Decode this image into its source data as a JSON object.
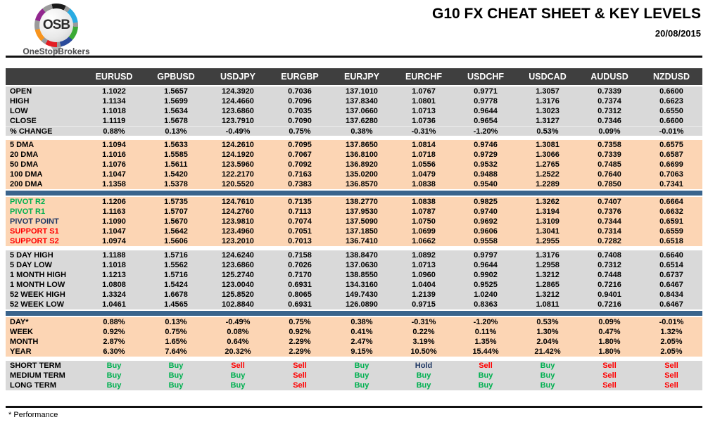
{
  "brand": {
    "logo_text": "OSB",
    "logo_name": "OneStopBrokers"
  },
  "header": {
    "title": "G10 FX CHEAT SHEET & KEY LEVELS",
    "date": "20/08/2015"
  },
  "footnote": "* Performance",
  "colors": {
    "header_bar": "#3f3f3f",
    "section_gray": "#d9d9d9",
    "section_peach": "#fcd5b4",
    "divider_blue": "#3a648c",
    "buy_green": "#00b050",
    "sell_red": "#ff0000",
    "hold_navy": "#1f3864"
  },
  "table": {
    "columns": [
      "EURUSD",
      "GPBUSD",
      "USDJPY",
      "EURGBP",
      "EURJPY",
      "EURCHF",
      "USDCHF",
      "USDCAD",
      "AUDUSD",
      "NZDUSD"
    ],
    "sections": [
      {
        "kind": "rows",
        "bg": "gray",
        "rows": [
          {
            "label": "OPEN",
            "values": [
              "1.1022",
              "1.5657",
              "124.3920",
              "0.7036",
              "137.1010",
              "1.0767",
              "0.9771",
              "1.3057",
              "0.7339",
              "0.6600"
            ]
          },
          {
            "label": "HIGH",
            "values": [
              "1.1134",
              "1.5699",
              "124.4660",
              "0.7096",
              "137.8340",
              "1.0801",
              "0.9778",
              "1.3176",
              "0.7374",
              "0.6623"
            ]
          },
          {
            "label": "LOW",
            "values": [
              "1.1018",
              "1.5634",
              "123.6860",
              "0.7035",
              "137.0660",
              "1.0713",
              "0.9644",
              "1.3023",
              "0.7312",
              "0.6550"
            ]
          },
          {
            "label": "CLOSE",
            "values": [
              "1.1119",
              "1.5678",
              "123.7910",
              "0.7090",
              "137.6280",
              "1.0736",
              "0.9654",
              "1.3127",
              "0.7346",
              "0.6600"
            ]
          },
          {
            "label": "% CHANGE",
            "sep": true,
            "values": [
              "0.88%",
              "0.13%",
              "-0.49%",
              "0.75%",
              "0.38%",
              "-0.31%",
              "-1.20%",
              "0.53%",
              "0.09%",
              "-0.01%"
            ]
          }
        ]
      },
      {
        "kind": "gap"
      },
      {
        "kind": "rows",
        "bg": "peach",
        "rows": [
          {
            "label": "5 DMA",
            "values": [
              "1.1094",
              "1.5633",
              "124.2610",
              "0.7095",
              "137.8650",
              "1.0814",
              "0.9746",
              "1.3081",
              "0.7358",
              "0.6575"
            ]
          },
          {
            "label": "20 DMA",
            "values": [
              "1.1016",
              "1.5585",
              "124.1920",
              "0.7067",
              "136.8100",
              "1.0718",
              "0.9729",
              "1.3066",
              "0.7339",
              "0.6587"
            ]
          },
          {
            "label": "50 DMA",
            "values": [
              "1.1076",
              "1.5611",
              "123.5960",
              "0.7092",
              "136.8920",
              "1.0556",
              "0.9532",
              "1.2765",
              "0.7485",
              "0.6699"
            ]
          },
          {
            "label": "100 DMA",
            "values": [
              "1.1047",
              "1.5420",
              "122.2170",
              "0.7163",
              "135.0200",
              "1.0479",
              "0.9488",
              "1.2522",
              "0.7640",
              "0.7063"
            ]
          },
          {
            "label": "200 DMA",
            "values": [
              "1.1358",
              "1.5378",
              "120.5520",
              "0.7383",
              "136.8570",
              "1.0838",
              "0.9540",
              "1.2289",
              "0.7850",
              "0.7341"
            ]
          }
        ]
      },
      {
        "kind": "divider"
      },
      {
        "kind": "rows",
        "bg": "peach",
        "rows": [
          {
            "label": "PIVOT R2",
            "color": "green",
            "values": [
              "1.1206",
              "1.5735",
              "124.7610",
              "0.7135",
              "138.2770",
              "1.0838",
              "0.9825",
              "1.3262",
              "0.7407",
              "0.6664"
            ]
          },
          {
            "label": "PIVOT R1",
            "color": "green",
            "values": [
              "1.1163",
              "1.5707",
              "124.2760",
              "0.7113",
              "137.9530",
              "1.0787",
              "0.9740",
              "1.3194",
              "0.7376",
              "0.6632"
            ]
          },
          {
            "label": "PIVOT POINT",
            "color": "navy",
            "values": [
              "1.1090",
              "1.5670",
              "123.9810",
              "0.7074",
              "137.5090",
              "1.0750",
              "0.9692",
              "1.3109",
              "0.7344",
              "0.6591"
            ]
          },
          {
            "label": "SUPPORT S1",
            "color": "red",
            "values": [
              "1.1047",
              "1.5642",
              "123.4960",
              "0.7051",
              "137.1850",
              "1.0699",
              "0.9606",
              "1.3041",
              "0.7314",
              "0.6559"
            ]
          },
          {
            "label": "SUPPORT S2",
            "color": "red",
            "values": [
              "1.0974",
              "1.5606",
              "123.2010",
              "0.7013",
              "136.7410",
              "1.0662",
              "0.9558",
              "1.2955",
              "0.7282",
              "0.6518"
            ]
          }
        ]
      },
      {
        "kind": "gap"
      },
      {
        "kind": "rows",
        "bg": "gray",
        "rows": [
          {
            "label": "5 DAY HIGH",
            "values": [
              "1.1188",
              "1.5716",
              "124.6240",
              "0.7158",
              "138.8470",
              "1.0892",
              "0.9797",
              "1.3176",
              "0.7408",
              "0.6640"
            ]
          },
          {
            "label": "5 DAY LOW",
            "values": [
              "1.1018",
              "1.5562",
              "123.6860",
              "0.7026",
              "137.0630",
              "1.0713",
              "0.9644",
              "1.2958",
              "0.7312",
              "0.6514"
            ]
          },
          {
            "label": "1 MONTH HIGH",
            "values": [
              "1.1213",
              "1.5716",
              "125.2740",
              "0.7170",
              "138.8550",
              "1.0960",
              "0.9902",
              "1.3212",
              "0.7448",
              "0.6737"
            ]
          },
          {
            "label": "1 MONTH LOW",
            "values": [
              "1.0808",
              "1.5424",
              "123.0040",
              "0.6931",
              "134.3160",
              "1.0404",
              "0.9525",
              "1.2865",
              "0.7216",
              "0.6467"
            ]
          },
          {
            "label": "52 WEEK HIGH",
            "values": [
              "1.3324",
              "1.6678",
              "125.8520",
              "0.8065",
              "149.7430",
              "1.2139",
              "1.0240",
              "1.3212",
              "0.9401",
              "0.8434"
            ]
          },
          {
            "label": "52 WEEK LOW",
            "values": [
              "1.0461",
              "1.4565",
              "102.8840",
              "0.6931",
              "126.0890",
              "0.9715",
              "0.8363",
              "1.0811",
              "0.7216",
              "0.6467"
            ]
          }
        ]
      },
      {
        "kind": "divider"
      },
      {
        "kind": "rows",
        "bg": "peach",
        "rows": [
          {
            "label": "DAY*",
            "values": [
              "0.88%",
              "0.13%",
              "-0.49%",
              "0.75%",
              "0.38%",
              "-0.31%",
              "-1.20%",
              "0.53%",
              "0.09%",
              "-0.01%"
            ]
          },
          {
            "label": "WEEK",
            "values": [
              "0.92%",
              "0.75%",
              "0.08%",
              "0.92%",
              "0.41%",
              "0.22%",
              "0.11%",
              "1.30%",
              "0.47%",
              "1.32%"
            ]
          },
          {
            "label": "MONTH",
            "values": [
              "2.87%",
              "1.65%",
              "0.64%",
              "2.29%",
              "2.47%",
              "3.19%",
              "1.35%",
              "2.04%",
              "1.80%",
              "2.05%"
            ]
          },
          {
            "label": "YEAR",
            "values": [
              "6.30%",
              "7.64%",
              "20.32%",
              "2.29%",
              "9.15%",
              "10.50%",
              "15.44%",
              "21.42%",
              "1.80%",
              "2.05%"
            ]
          }
        ]
      },
      {
        "kind": "gap"
      },
      {
        "kind": "rows",
        "bg": "gray",
        "signals": true,
        "rows": [
          {
            "label": "SHORT TERM",
            "values": [
              "Buy",
              "Buy",
              "Sell",
              "Sell",
              "Buy",
              "Hold",
              "Sell",
              "Buy",
              "Sell",
              "Sell"
            ]
          },
          {
            "label": "MEDIUM TERM",
            "values": [
              "Buy",
              "Buy",
              "Buy",
              "Sell",
              "Buy",
              "Buy",
              "Buy",
              "Buy",
              "Sell",
              "Sell"
            ]
          },
          {
            "label": "LONG TERM",
            "values": [
              "Buy",
              "Buy",
              "Buy",
              "Sell",
              "Buy",
              "Buy",
              "Buy",
              "Buy",
              "Sell",
              "Sell"
            ]
          }
        ]
      }
    ]
  }
}
